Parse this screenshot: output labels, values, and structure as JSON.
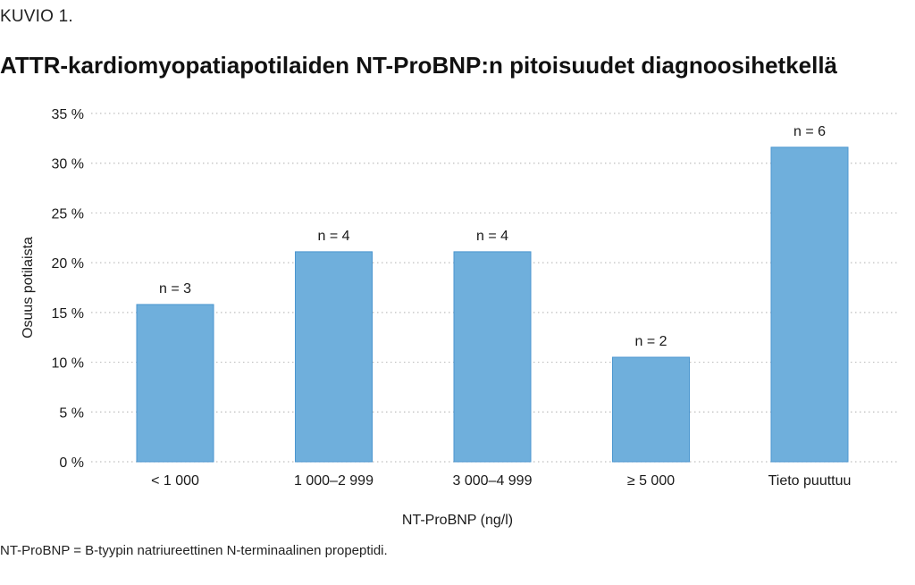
{
  "figure_label": "KUVIO 1.",
  "footnote": "NT-ProBNP = B-tyypin natriureettinen N-terminaalinen propeptidi.",
  "colors": {
    "bar": "#6fafdc",
    "bar_stroke": "#4b96cf",
    "grid": "#bfbfbf",
    "text": "#1a1a1a"
  },
  "chart_data": {
    "type": "bar",
    "title": "ATTR-kardiomyopatiapotilaiden NT-ProBNP:n pitoisuudet diagnoosihetkellä",
    "xlabel": "NT-ProBNP (ng/l)",
    "ylabel": "Osuus potilaista",
    "categories": [
      "< 1 000",
      "1 000–2 999",
      "3 000–4 999",
      "≥ 5 000",
      "Tieto puuttuu"
    ],
    "values": [
      15.8,
      21.1,
      21.1,
      10.5,
      31.6
    ],
    "data_labels": [
      "n = 3",
      "n = 4",
      "n = 4",
      "n = 2",
      "n = 6"
    ],
    "ylim": [
      0,
      35
    ],
    "yticks": [
      0,
      5,
      10,
      15,
      20,
      25,
      30,
      35
    ],
    "ytick_labels": [
      "0 %",
      "5 %",
      "10 %",
      "15 %",
      "20 %",
      "25 %",
      "30 %",
      "35 %"
    ],
    "grid": true,
    "grid_style": "dotted",
    "legend": "none"
  }
}
